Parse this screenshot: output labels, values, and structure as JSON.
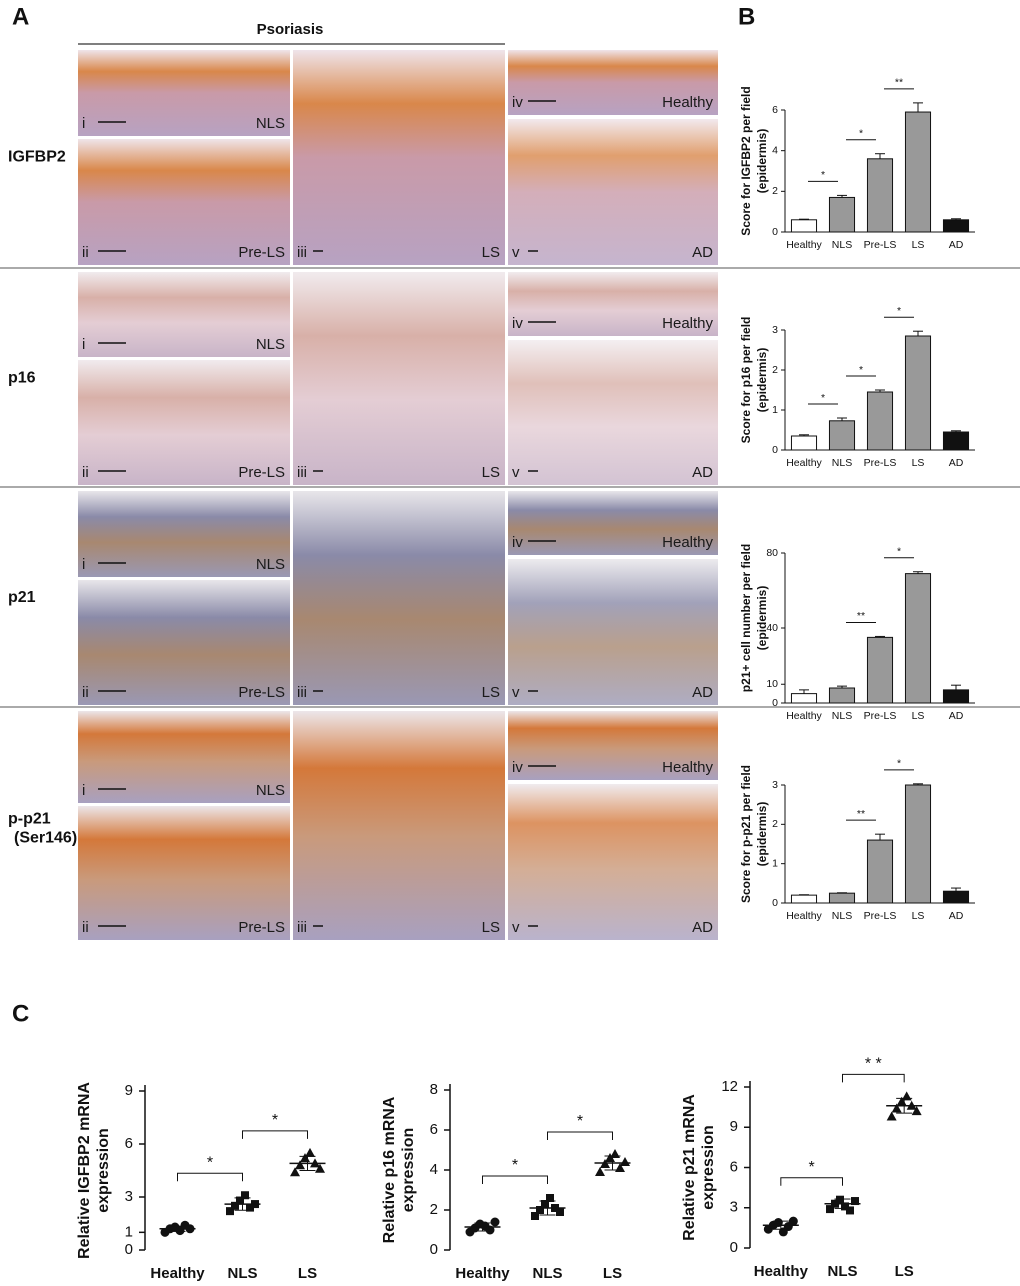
{
  "panel_labels": [
    "A",
    "B",
    "C"
  ],
  "panel_a": {
    "header": "Psoriasis",
    "rows": [
      {
        "marker": "IGFBP2",
        "images": [
          {
            "numeral": "i",
            "label": "NLS"
          },
          {
            "numeral": "ii",
            "label": "Pre-LS"
          },
          {
            "numeral": "iii",
            "label": "LS"
          },
          {
            "numeral": "iv",
            "label": "Healthy"
          },
          {
            "numeral": "v",
            "label": "AD"
          }
        ]
      },
      {
        "marker": "p16",
        "images": [
          {
            "numeral": "i",
            "label": "NLS"
          },
          {
            "numeral": "ii",
            "label": "Pre-LS"
          },
          {
            "numeral": "iii",
            "label": "LS"
          },
          {
            "numeral": "iv",
            "label": "Healthy"
          },
          {
            "numeral": "v",
            "label": "AD"
          }
        ]
      },
      {
        "marker": "p21",
        "images": [
          {
            "numeral": "i",
            "label": "NLS"
          },
          {
            "numeral": "ii",
            "label": "Pre-LS"
          },
          {
            "numeral": "iii",
            "label": "LS"
          },
          {
            "numeral": "iv",
            "label": "Healthy"
          },
          {
            "numeral": "v",
            "label": "AD"
          }
        ]
      },
      {
        "marker": "p-p21",
        "sublabel": "(Ser146)",
        "images": [
          {
            "numeral": "i",
            "label": "NLS"
          },
          {
            "numeral": "ii",
            "label": "Pre-LS"
          },
          {
            "numeral": "iii",
            "label": "LS"
          },
          {
            "numeral": "iv",
            "label": "Healthy"
          },
          {
            "numeral": "v",
            "label": "AD"
          }
        ]
      }
    ]
  },
  "chart_data": [
    {
      "type": "bar",
      "ylabel": [
        "Score for IGFBP2 per field",
        "(epidermis)"
      ],
      "categories": [
        "Healthy",
        "NLS",
        "Pre-LS",
        "LS",
        "AD"
      ],
      "values": [
        0.6,
        1.7,
        3.6,
        5.9,
        0.6
      ],
      "errors": [
        0.03,
        0.1,
        0.25,
        0.45,
        0.05
      ],
      "colors": [
        "#ffffff",
        "#999999",
        "#999999",
        "#999999",
        "#111111"
      ],
      "ylim": [
        0,
        6
      ],
      "yticks": [
        0,
        2,
        4,
        6
      ],
      "significance": [
        {
          "between": [
            "Healthy",
            "NLS"
          ],
          "label": "*"
        },
        {
          "between": [
            "NLS",
            "Pre-LS"
          ],
          "label": "*"
        },
        {
          "between": [
            "Pre-LS",
            "LS"
          ],
          "label": "**"
        }
      ]
    },
    {
      "type": "bar",
      "ylabel": [
        "Score for p16 per field",
        "(epidermis)"
      ],
      "categories": [
        "Healthy",
        "NLS",
        "Pre-LS",
        "LS",
        "AD"
      ],
      "values": [
        0.35,
        0.73,
        1.45,
        2.85,
        0.45
      ],
      "errors": [
        0.03,
        0.07,
        0.05,
        0.12,
        0.03
      ],
      "colors": [
        "#ffffff",
        "#999999",
        "#999999",
        "#999999",
        "#111111"
      ],
      "ylim": [
        0,
        3
      ],
      "yticks": [
        0,
        1,
        2,
        3
      ],
      "significance": [
        {
          "between": [
            "Healthy",
            "NLS"
          ],
          "label": "*"
        },
        {
          "between": [
            "NLS",
            "Pre-LS"
          ],
          "label": "*"
        },
        {
          "between": [
            "Pre-LS",
            "LS"
          ],
          "label": "*"
        }
      ]
    },
    {
      "type": "bar",
      "ylabel": [
        "p21+ cell number per field",
        "(epidermis)"
      ],
      "categories": [
        "Healthy",
        "NLS",
        "Pre-LS",
        "LS",
        "AD"
      ],
      "values": [
        5,
        8,
        35,
        69,
        7
      ],
      "errors": [
        2,
        1,
        0.5,
        1,
        2.5
      ],
      "colors": [
        "#ffffff",
        "#999999",
        "#999999",
        "#999999",
        "#111111"
      ],
      "ylim": [
        0,
        80
      ],
      "yticks": [
        0,
        10,
        40,
        80
      ],
      "significance": [
        {
          "between": [
            "NLS",
            "Pre-LS"
          ],
          "label": "**"
        },
        {
          "between": [
            "Pre-LS",
            "LS"
          ],
          "label": "*"
        }
      ]
    },
    {
      "type": "bar",
      "ylabel": [
        "Score for p-p21 per field",
        "(epidermis)"
      ],
      "categories": [
        "Healthy",
        "NLS",
        "Pre-LS",
        "LS",
        "AD"
      ],
      "values": [
        0.2,
        0.25,
        1.6,
        3.0,
        0.3
      ],
      "errors": [
        0.01,
        0.01,
        0.15,
        0.03,
        0.08
      ],
      "colors": [
        "#ffffff",
        "#999999",
        "#999999",
        "#999999",
        "#111111"
      ],
      "ylim": [
        0,
        3
      ],
      "yticks": [
        0,
        1,
        2,
        3
      ],
      "significance": [
        {
          "between": [
            "NLS",
            "Pre-LS"
          ],
          "label": "**"
        },
        {
          "between": [
            "Pre-LS",
            "LS"
          ],
          "label": "*"
        }
      ]
    },
    {
      "type": "dot",
      "ylabel": [
        "Relative IGFBP2 mRNA",
        "expression"
      ],
      "categories": [
        "Healthy",
        "NLS",
        "LS"
      ],
      "markers": [
        "circle",
        "square",
        "triangle"
      ],
      "points": [
        [
          1.0,
          1.2,
          1.3,
          1.1,
          1.4,
          1.2
        ],
        [
          2.2,
          2.5,
          2.8,
          3.1,
          2.4,
          2.6
        ],
        [
          4.4,
          4.8,
          5.2,
          5.5,
          4.9,
          4.6
        ]
      ],
      "means": [
        1.2,
        2.6,
        4.9
      ],
      "sd": [
        0.15,
        0.35,
        0.4
      ],
      "ylim": [
        0,
        9
      ],
      "yticks": [
        0,
        1,
        3,
        6,
        9
      ],
      "significance": [
        {
          "between": [
            "Healthy",
            "NLS"
          ],
          "label": "*"
        },
        {
          "between": [
            "NLS",
            "LS"
          ],
          "label": "*"
        }
      ]
    },
    {
      "type": "dot",
      "ylabel": [
        "Relative p16 mRNA",
        "expression"
      ],
      "categories": [
        "Healthy",
        "NLS",
        "LS"
      ],
      "markers": [
        "circle",
        "square",
        "triangle"
      ],
      "points": [
        [
          0.9,
          1.1,
          1.3,
          1.2,
          1.0,
          1.4
        ],
        [
          1.7,
          2.0,
          2.3,
          2.6,
          2.1,
          1.9
        ],
        [
          3.9,
          4.3,
          4.6,
          4.8,
          4.1,
          4.4
        ]
      ],
      "means": [
        1.15,
        2.1,
        4.35
      ],
      "sd": [
        0.2,
        0.35,
        0.35
      ],
      "ylim": [
        0,
        8
      ],
      "yticks": [
        0,
        2,
        4,
        6,
        8
      ],
      "significance": [
        {
          "between": [
            "Healthy",
            "NLS"
          ],
          "label": "*"
        },
        {
          "between": [
            "NLS",
            "LS"
          ],
          "label": "*"
        }
      ]
    },
    {
      "type": "dot",
      "ylabel": [
        "Relative p21 mRNA",
        "expression"
      ],
      "categories": [
        "Healthy",
        "NLS",
        "LS"
      ],
      "markers": [
        "circle",
        "square",
        "triangle"
      ],
      "points": [
        [
          1.4,
          1.7,
          1.9,
          1.2,
          1.6,
          2.0
        ],
        [
          2.9,
          3.3,
          3.6,
          3.1,
          2.8,
          3.5
        ],
        [
          9.8,
          10.4,
          10.9,
          11.3,
          10.6,
          10.2
        ]
      ],
      "means": [
        1.7,
        3.3,
        10.6
      ],
      "sd": [
        0.3,
        0.35,
        0.55
      ],
      "ylim": [
        0,
        12
      ],
      "yticks": [
        0,
        3,
        6,
        9,
        12
      ],
      "significance": [
        {
          "between": [
            "Healthy",
            "NLS"
          ],
          "label": "*"
        },
        {
          "between": [
            "NLS",
            "LS"
          ],
          "label": "* *"
        }
      ]
    }
  ]
}
